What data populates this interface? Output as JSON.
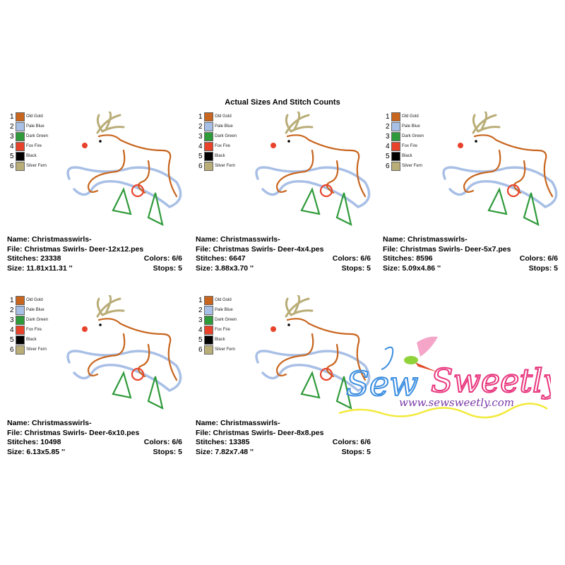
{
  "title": "Actual Sizes And Stitch Counts",
  "palette": [
    {
      "num": "1",
      "name": "Old Gold",
      "color": "#c8651e"
    },
    {
      "num": "2",
      "name": "Pale Blue",
      "color": "#a8bfe6"
    },
    {
      "num": "3",
      "name": "Dark Green",
      "color": "#2f9a3a"
    },
    {
      "num": "4",
      "name": "Fox Fire",
      "color": "#e8432a"
    },
    {
      "num": "5",
      "name": "Black",
      "color": "#000000"
    },
    {
      "num": "6",
      "name": "Silver Fern",
      "color": "#b9ad78"
    }
  ],
  "designs": [
    {
      "name": "Name: Christmasswirls-",
      "file": "File: Christmas Swirls- Deer-12x12.pes",
      "stitches": "Stitches: 23338",
      "colors": "Colors: 6/6",
      "size": "Size: 11.81x11.31 ''",
      "stops": "Stops: 5"
    },
    {
      "name": "Name: Christmasswirls-",
      "file": "File: Christmas Swirls- Deer-4x4.pes",
      "stitches": "Stitches: 6647",
      "colors": "Colors: 6/6",
      "size": "Size: 3.88x3.70 ''",
      "stops": "Stops: 5"
    },
    {
      "name": "Name: Christmasswirls-",
      "file": "File: Christmas Swirls- Deer-5x7.pes",
      "stitches": "Stitches: 8596",
      "colors": "Colors: 6/6",
      "size": "Size: 5.09x4.86 ''",
      "stops": "Stops: 5"
    },
    {
      "name": "Name: Christmasswirls-",
      "file": "File: Christmas Swirls- Deer-6x10.pes",
      "stitches": "Stitches: 10498",
      "colors": "Colors: 6/6",
      "size": "Size: 6.13x5.85 ''",
      "stops": "Stops: 5"
    },
    {
      "name": "Name: Christmasswirls-",
      "file": "File: Christmas Swirls- Deer-8x8.pes",
      "stitches": "Stitches: 13385",
      "colors": "Colors: 6/6",
      "size": "Size: 7.82x7.48 ''",
      "stops": "Stops: 5"
    }
  ],
  "logo": {
    "brand": "Sew Sweetly",
    "url": "www.sewsweetly.com",
    "colors": {
      "sew": "#3a8de0",
      "sweetly": "#e8367e",
      "url": "#7a3aa8",
      "line": "#f2ea3a"
    }
  }
}
